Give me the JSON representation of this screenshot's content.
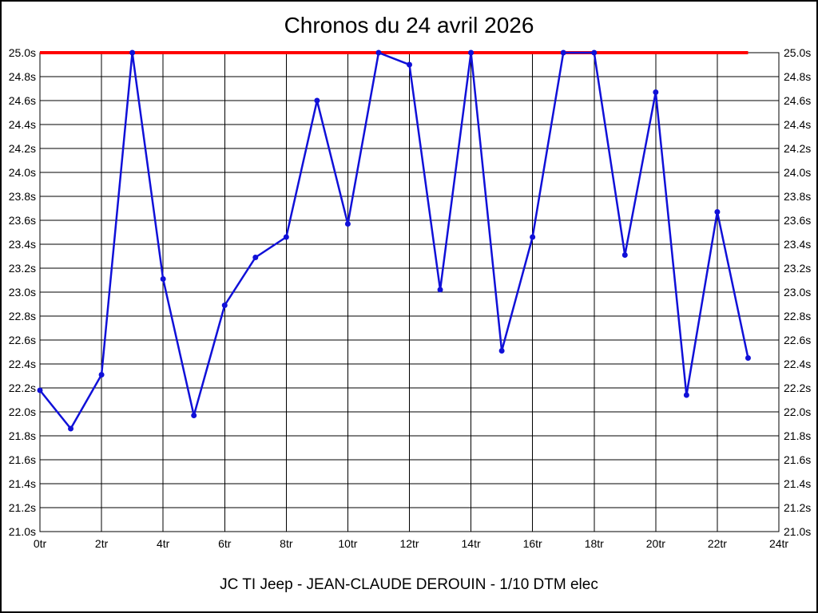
{
  "chart_data": {
    "type": "line",
    "title": "Chronos du 24 avril 2026",
    "footer": "JC TI Jeep - JEAN-CLAUDE DEROUIN - 1/10 DTM elec",
    "x_unit_suffix": "tr",
    "y_unit_suffix": "s",
    "x": [
      0,
      1,
      2,
      3,
      4,
      5,
      6,
      7,
      8,
      9,
      10,
      11,
      12,
      13,
      14,
      15,
      16,
      17,
      18,
      19,
      20,
      21,
      22,
      23
    ],
    "values": [
      22.18,
      21.86,
      22.31,
      25.0,
      23.11,
      21.97,
      22.89,
      23.29,
      23.46,
      24.6,
      23.57,
      25.0,
      24.9,
      23.02,
      25.0,
      22.51,
      23.46,
      25.0,
      25.0,
      23.31,
      24.67,
      22.14,
      23.67,
      22.45
    ],
    "xlim": [
      0,
      24
    ],
    "ylim": [
      21.0,
      25.0
    ],
    "x_tick_step": 2,
    "y_tick_step": 0.2,
    "grid": true,
    "axis_labels_both_sides": true,
    "line_color": "#1010d8",
    "marker": "circle",
    "reference_line": {
      "y": 25.0,
      "x_from": 0,
      "x_to": 23,
      "color": "#ff0000"
    }
  }
}
